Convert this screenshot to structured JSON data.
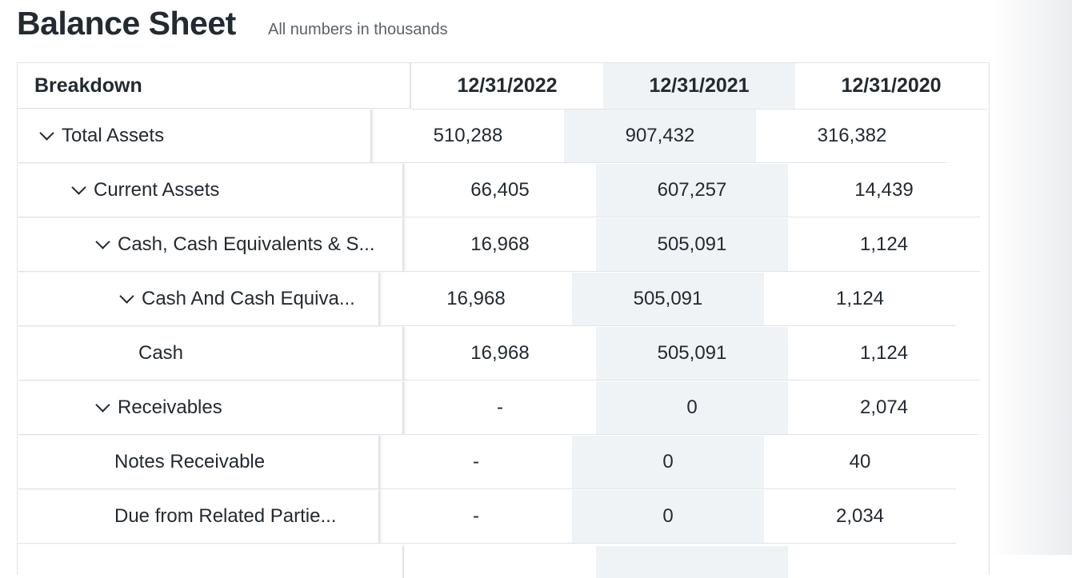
{
  "header": {
    "title": "Balance Sheet",
    "subtitle": "All numbers in thousands"
  },
  "table": {
    "breakdown_label": "Breakdown",
    "columns": [
      "12/31/2022",
      "12/31/2021",
      "12/31/2020"
    ],
    "rows": [
      {
        "label": "Total Assets",
        "expandable": true,
        "values": [
          "510,288",
          "907,432",
          "316,382"
        ]
      },
      {
        "label": "Current Assets",
        "expandable": true,
        "values": [
          "66,405",
          "607,257",
          "14,439"
        ]
      },
      {
        "label": "Cash, Cash Equivalents & S...",
        "expandable": true,
        "values": [
          "16,968",
          "505,091",
          "1,124"
        ]
      },
      {
        "label": "Cash And Cash Equiva...",
        "expandable": true,
        "values": [
          "16,968",
          "505,091",
          "1,124"
        ]
      },
      {
        "label": "Cash",
        "expandable": false,
        "values": [
          "16,968",
          "505,091",
          "1,124"
        ]
      },
      {
        "label": "Receivables",
        "expandable": true,
        "values": [
          "-",
          "0",
          "2,074"
        ]
      },
      {
        "label": "Notes Receivable",
        "expandable": false,
        "values": [
          "-",
          "0",
          "40"
        ]
      },
      {
        "label": "Due from Related Partie...",
        "expandable": false,
        "values": [
          "-",
          "0",
          "2,034"
        ]
      }
    ]
  },
  "icons": {
    "expand": "chevron-down-icon"
  },
  "colors": {
    "shaded_column": "#f0f3f5",
    "border": "#e0e4e9",
    "text": "#232a31"
  }
}
